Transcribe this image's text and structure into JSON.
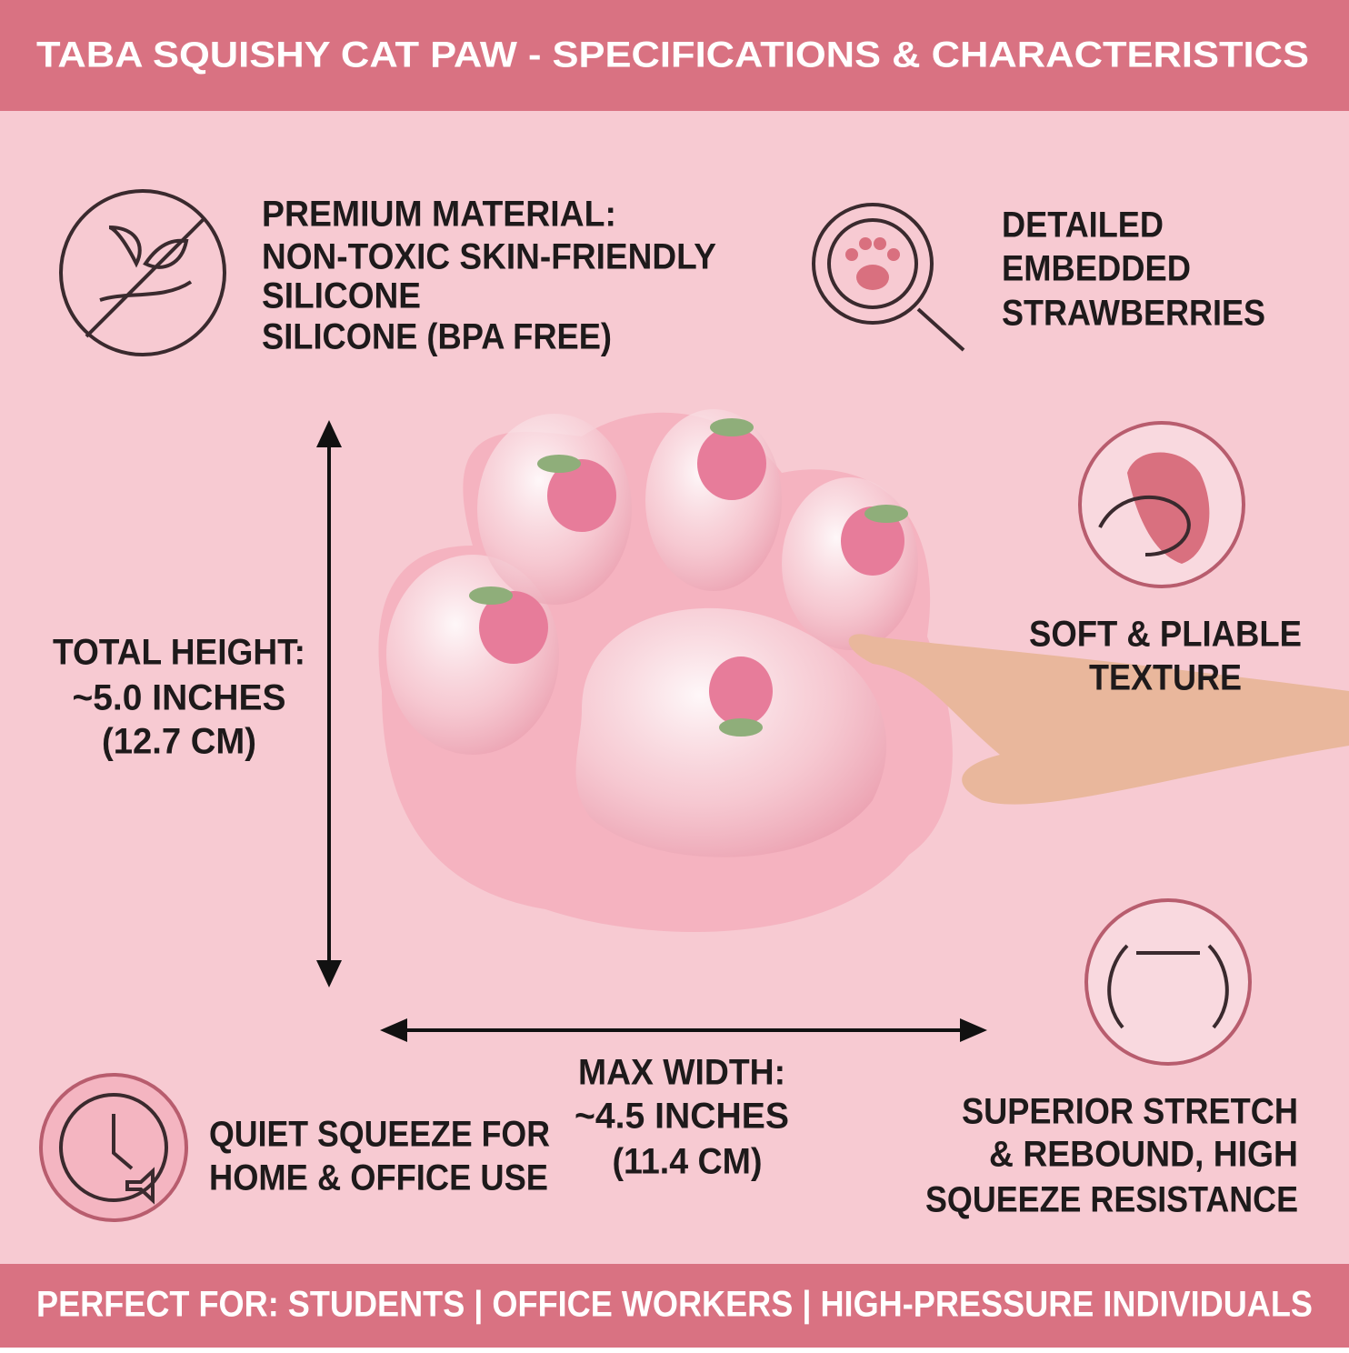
{
  "header": {
    "title": "TABA SQUISHY CAT PAW - SPECIFICATIONS & CHARACTERISTICS"
  },
  "features": [
    {
      "lines": [
        "PREMIUM MATERIAL:",
        "NON-TOXIC SKIN-FRIENDLY",
        "SILICONE",
        "SILICONE (BPA FREE)"
      ]
    },
    {
      "lines": [
        "DETAILED",
        "EMBEDDED",
        "STRAWBERRIES"
      ]
    },
    {
      "lines": [
        "SOFT & PLIABLE",
        "TEXTURE"
      ]
    },
    {
      "lines": [
        "QUIET SQUEEZE FOR",
        "HOME & OFFICE USE"
      ]
    },
    {
      "lines": [
        "SUPERIOR STRETCH",
        "& REBOUND, HIGH",
        "SQUEEZE RESISTANCE"
      ]
    }
  ],
  "dimensions": {
    "height": [
      "TOTAL HEIGHT:",
      "~5.0 INCHES",
      "(12.7 CM)"
    ],
    "width": [
      "MAX WIDTH:",
      "~4.5 INCHES",
      "(11.4 CM)"
    ]
  },
  "footer": {
    "text": "PERFECT FOR: STUDENTS | OFFICE WORKERS | HIGH-PRESSURE INDIVIDUALS"
  }
}
